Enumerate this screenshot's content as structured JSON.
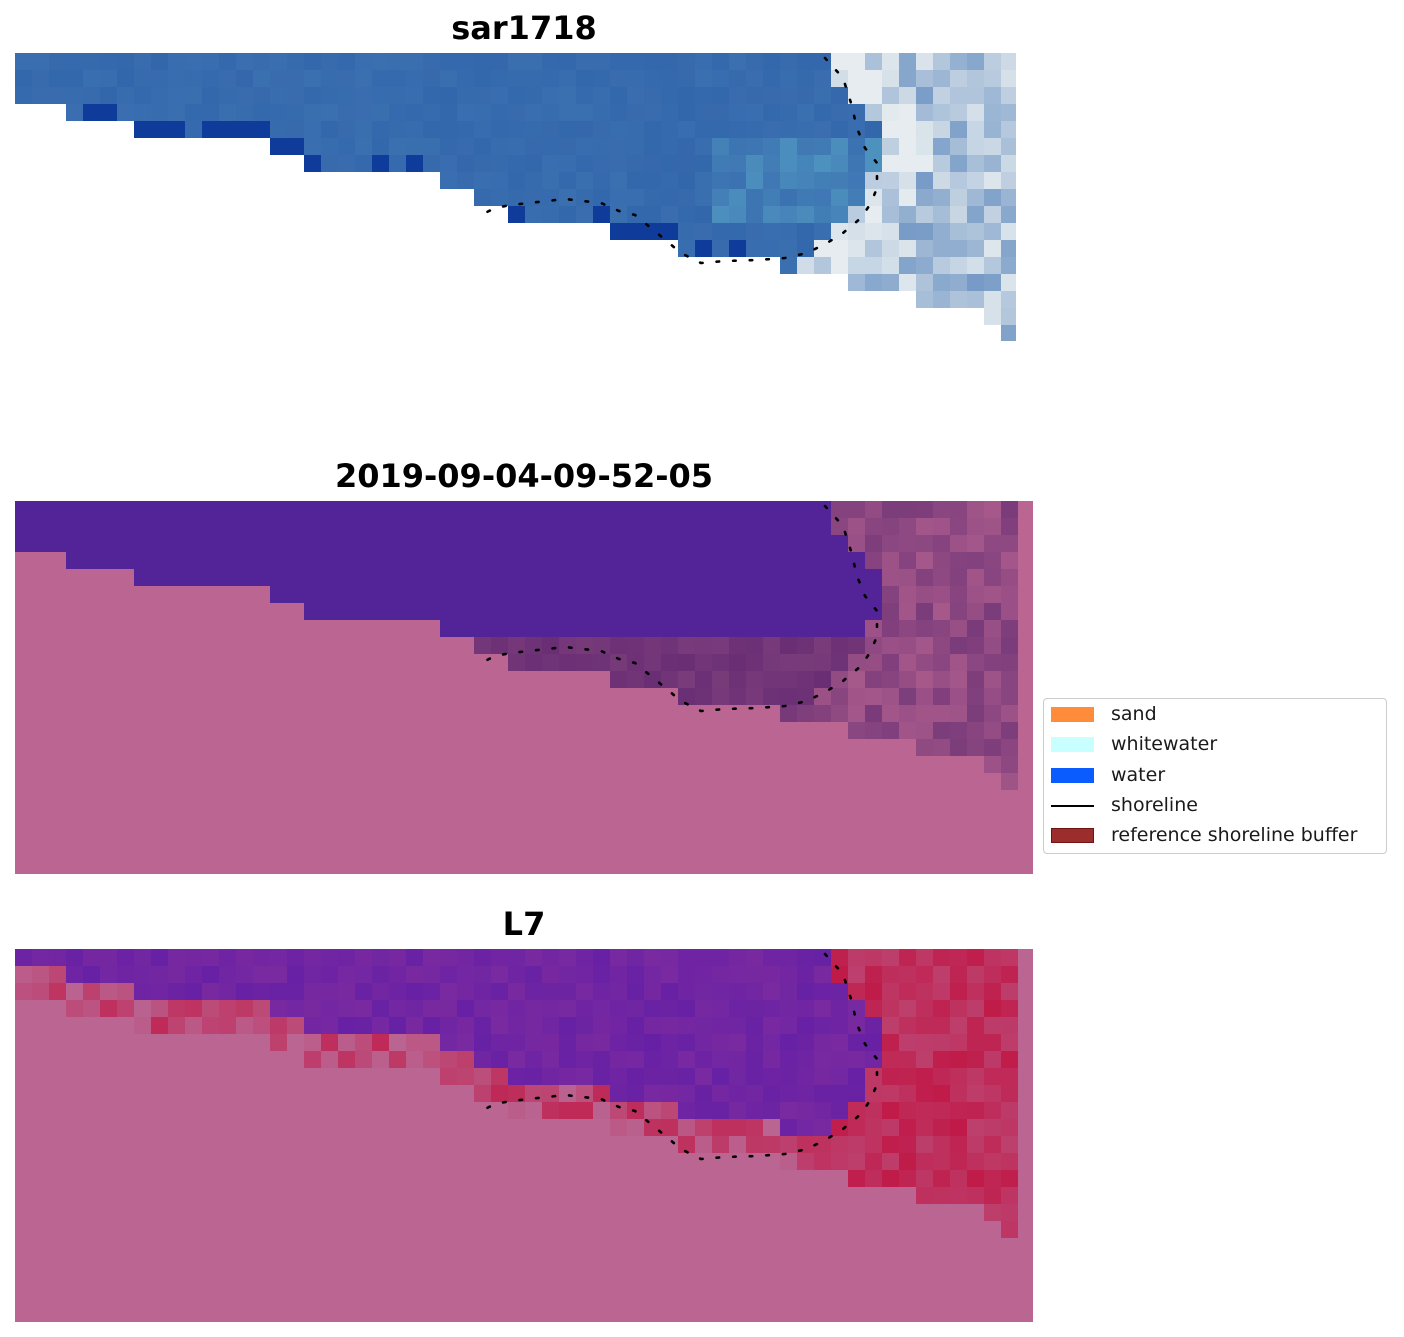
{
  "panels": [
    {
      "title": "sar1718"
    },
    {
      "title": "2019-09-04-09-52-05"
    },
    {
      "title": "L7"
    }
  ],
  "legend": {
    "items": [
      {
        "label": "sand",
        "color": "#ff8c3a",
        "kind": "patch"
      },
      {
        "label": "whitewater",
        "color": "#c8ffff",
        "kind": "patch"
      },
      {
        "label": "water",
        "color": "#0a5cff",
        "kind": "patch"
      },
      {
        "label": "shoreline",
        "color": "#000000",
        "kind": "line"
      },
      {
        "label": "reference shoreline buffer",
        "color": "#9b2d2d",
        "kind": "patch"
      }
    ]
  },
  "colors": {
    "rgb_water": "#3a6fb0",
    "rgb_surf": "#e6ecef",
    "classified_water": "#532398",
    "nodata_pink": "#ba6592",
    "buffer_purple": "#793b7a",
    "mndwi_red": "#c01a48",
    "mndwi_purple": "#7a2aa0",
    "shoreline": "#000000"
  }
}
